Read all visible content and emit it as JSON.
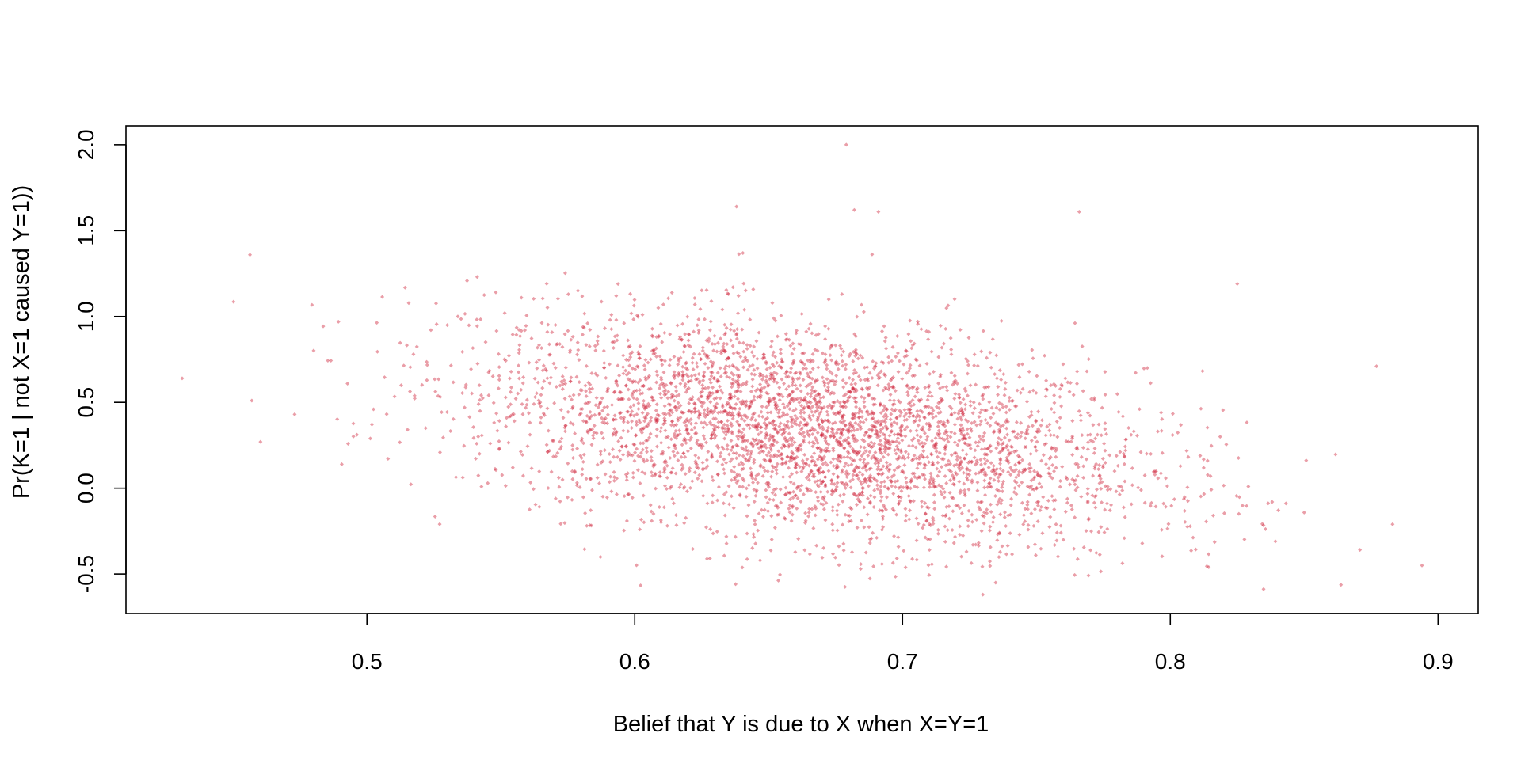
{
  "chart_data": {
    "type": "scatter",
    "title": "",
    "xlabel": "Belief that Y is due to X when X=Y=1",
    "ylabel": "Pr(K=1 | not X=1 caused Y=1))",
    "xlim": [
      0.41,
      0.915
    ],
    "ylim": [
      -0.73,
      2.11
    ],
    "x_ticks": [
      0.5,
      0.6,
      0.7,
      0.8,
      0.9
    ],
    "x_tick_labels": [
      "0.5",
      "0.6",
      "0.7",
      "0.8",
      "0.9"
    ],
    "y_ticks": [
      -0.5,
      0.0,
      0.5,
      1.0,
      1.5,
      2.0
    ],
    "y_tick_labels": [
      "-0.5",
      "0.0",
      "0.5",
      "1.0",
      "1.5",
      "2.0"
    ],
    "grid": false,
    "point_color": "#d0283f",
    "point_opacity": 0.45,
    "n_points": 4000,
    "distribution": {
      "x_mean": 0.666,
      "x_sd": 0.062,
      "y_mean": 0.33,
      "y_sd": 0.3,
      "slope": -1.9
    },
    "notable_points": [
      {
        "x": 0.431,
        "y": 0.64
      },
      {
        "x": 0.457,
        "y": 0.51
      },
      {
        "x": 0.473,
        "y": 0.43
      },
      {
        "x": 0.679,
        "y": 2.0
      },
      {
        "x": 0.638,
        "y": 1.64
      },
      {
        "x": 0.682,
        "y": 1.62
      },
      {
        "x": 0.691,
        "y": 1.61
      },
      {
        "x": 0.766,
        "y": 1.61
      },
      {
        "x": 0.894,
        "y": -0.45
      },
      {
        "x": 0.73,
        "y": -0.62
      },
      {
        "x": 0.883,
        "y": -0.21
      },
      {
        "x": 0.877,
        "y": 0.71
      },
      {
        "x": 0.825,
        "y": 1.19
      }
    ]
  }
}
